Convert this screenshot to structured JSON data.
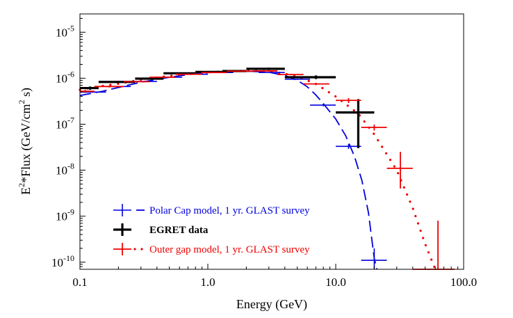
{
  "chart_data": {
    "type": "scatter",
    "xlabel": "Energy (GeV)",
    "ylabel_base": "E",
    "ylabel_sup": "2",
    "ylabel_mid": "*Flux (GeV/cm",
    "ylabel_sup2": "2",
    "ylabel_end": " s)",
    "x_scale": "log",
    "y_scale": "log",
    "xlim": [
      0.1,
      100
    ],
    "ylim": [
      7e-11,
      2.5e-05
    ],
    "x_ticks": [
      {
        "value": 0.1,
        "label": "0.1"
      },
      {
        "value": 1,
        "label": "1.0"
      },
      {
        "value": 10,
        "label": "10.0"
      },
      {
        "value": 100,
        "label": "100.0"
      }
    ],
    "y_ticks": [
      {
        "value": 1e-10,
        "base": "10",
        "exp": "-10"
      },
      {
        "value": 1e-09,
        "base": "10",
        "exp": "-9"
      },
      {
        "value": 1e-08,
        "base": "10",
        "exp": "-8"
      },
      {
        "value": 1e-07,
        "base": "10",
        "exp": "-7"
      },
      {
        "value": 1e-06,
        "base": "10",
        "exp": "-6"
      },
      {
        "value": 1e-05,
        "base": "10",
        "exp": "-5"
      }
    ],
    "legend_position": "bottom-left",
    "series": [
      {
        "name": "Polar Cap model, 1 yr. GLAST survey",
        "color": "#0000dd",
        "model_style": "dashed",
        "model_curve": [
          [
            0.1,
            4.2e-07
          ],
          [
            0.15,
            5.2e-07
          ],
          [
            0.2,
            6.3e-07
          ],
          [
            0.3,
            8.2e-07
          ],
          [
            0.5,
            1.05e-06
          ],
          [
            0.7,
            1.2e-06
          ],
          [
            1.0,
            1.32e-06
          ],
          [
            1.5,
            1.4e-06
          ],
          [
            2.0,
            1.42e-06
          ],
          [
            3.0,
            1.35e-06
          ],
          [
            4.0,
            1.15e-06
          ],
          [
            5.0,
            9e-07
          ],
          [
            6.0,
            6.5e-07
          ],
          [
            7.0,
            4.3e-07
          ],
          [
            8.0,
            2.8e-07
          ],
          [
            10.0,
            1.3e-07
          ],
          [
            12.0,
            5.5e-08
          ],
          [
            14.0,
            2e-08
          ],
          [
            16.0,
            6e-09
          ],
          [
            18.0,
            1.2e-09
          ],
          [
            20.0,
            1.2e-10
          ],
          [
            21.0,
            7e-11
          ]
        ],
        "points": [
          {
            "x": 0.13,
            "y": 5e-07,
            "xlo": 0.1,
            "xhi": 0.16,
            "ylo": 4.85e-07,
            "yhi": 5.15e-07
          },
          {
            "x": 0.2,
            "y": 6.6e-07,
            "xlo": 0.16,
            "xhi": 0.25,
            "ylo": 6.4e-07,
            "yhi": 6.8e-07
          },
          {
            "x": 0.32,
            "y": 8.5e-07,
            "xlo": 0.25,
            "xhi": 0.4,
            "ylo": 8.3e-07,
            "yhi": 8.7e-07
          },
          {
            "x": 0.5,
            "y": 1.05e-06,
            "xlo": 0.4,
            "xhi": 0.63,
            "ylo": 1.03e-06,
            "yhi": 1.07e-06
          },
          {
            "x": 0.8,
            "y": 1.22e-06,
            "xlo": 0.63,
            "xhi": 1.0,
            "ylo": 1.2e-06,
            "yhi": 1.24e-06
          },
          {
            "x": 1.26,
            "y": 1.33e-06,
            "xlo": 1.0,
            "xhi": 1.58,
            "ylo": 1.31e-06,
            "yhi": 1.35e-06
          },
          {
            "x": 2.0,
            "y": 1.4e-06,
            "xlo": 1.58,
            "xhi": 2.5,
            "ylo": 1.38e-06,
            "yhi": 1.42e-06
          },
          {
            "x": 3.2,
            "y": 1.33e-06,
            "xlo": 2.5,
            "xhi": 4.0,
            "ylo": 1.3e-06,
            "yhi": 1.36e-06
          },
          {
            "x": 5.0,
            "y": 9.5e-07,
            "xlo": 4.0,
            "xhi": 6.3,
            "ylo": 9.2e-07,
            "yhi": 9.8e-07
          },
          {
            "x": 8.0,
            "y": 2.6e-07,
            "xlo": 6.3,
            "xhi": 10.0,
            "ylo": 2.45e-07,
            "yhi": 2.75e-07
          },
          {
            "x": 12.6,
            "y": 3.3e-08,
            "xlo": 10.0,
            "xhi": 15.8,
            "ylo": 2.9e-08,
            "yhi": 3.7e-08
          },
          {
            "x": 20.0,
            "y": 1.1e-10,
            "xlo": 15.8,
            "xhi": 25.1,
            "ylo": 7e-11,
            "yhi": 2e-10
          }
        ]
      },
      {
        "name": "EGRET data",
        "color": "#000000",
        "points": [
          {
            "x": 0.12,
            "y": 6.1e-07,
            "xlo": 0.1,
            "xhi": 0.14,
            "ylo": 5.6e-07,
            "yhi": 6.6e-07
          },
          {
            "x": 0.2,
            "y": 8.3e-07,
            "xlo": 0.14,
            "xhi": 0.27,
            "ylo": 7.9e-07,
            "yhi": 8.8e-07
          },
          {
            "x": 0.35,
            "y": 9.8e-07,
            "xlo": 0.27,
            "xhi": 0.45,
            "ylo": 9.4e-07,
            "yhi": 1.02e-06
          },
          {
            "x": 0.6,
            "y": 1.28e-06,
            "xlo": 0.45,
            "xhi": 0.8,
            "ylo": 1.24e-06,
            "yhi": 1.32e-06
          },
          {
            "x": 1.0,
            "y": 1.37e-06,
            "xlo": 0.8,
            "xhi": 1.3,
            "ylo": 1.33e-06,
            "yhi": 1.41e-06
          },
          {
            "x": 1.6,
            "y": 1.43e-06,
            "xlo": 1.3,
            "xhi": 2.0,
            "ylo": 1.39e-06,
            "yhi": 1.47e-06
          },
          {
            "x": 3.0,
            "y": 1.6e-06,
            "xlo": 2.0,
            "xhi": 4.0,
            "ylo": 1.5e-06,
            "yhi": 1.7e-06
          },
          {
            "x": 7.0,
            "y": 1.05e-06,
            "xlo": 4.0,
            "xhi": 10.0,
            "ylo": 9.6e-07,
            "yhi": 1.15e-06
          },
          {
            "x": 15.0,
            "y": 1.8e-07,
            "xlo": 10.0,
            "xhi": 20.0,
            "ylo": 3e-08,
            "yhi": 3.5e-07
          }
        ]
      },
      {
        "name": "Outer gap model, 1 yr. GLAST survey",
        "color": "#ee0000",
        "model_style": "dotted",
        "model_curve": [
          [
            0.1,
            5.6e-07
          ],
          [
            0.15,
            6.8e-07
          ],
          [
            0.2,
            7.6e-07
          ],
          [
            0.3,
            9.3e-07
          ],
          [
            0.5,
            1.12e-06
          ],
          [
            0.7,
            1.25e-06
          ],
          [
            1.0,
            1.35e-06
          ],
          [
            1.5,
            1.42e-06
          ],
          [
            2.0,
            1.45e-06
          ],
          [
            3.0,
            1.42e-06
          ],
          [
            4.0,
            1.25e-06
          ],
          [
            5.0,
            1.1e-06
          ],
          [
            7.0,
            7.5e-07
          ],
          [
            10.0,
            4e-07
          ],
          [
            15.0,
            1.7e-07
          ],
          [
            20.0,
            6e-08
          ],
          [
            30.0,
            1e-08
          ],
          [
            40.0,
            1.5e-09
          ],
          [
            50.0,
            2.5e-10
          ],
          [
            60.0,
            7e-11
          ]
        ],
        "points": [
          {
            "x": 0.11,
            "y": 5.2e-07,
            "xlo": 0.1,
            "xhi": 0.13,
            "ylo": 4.8e-07,
            "yhi": 5.6e-07
          },
          {
            "x": 0.17,
            "y": 6.6e-07,
            "xlo": 0.13,
            "xhi": 0.22,
            "ylo": 6.3e-07,
            "yhi": 6.9e-07
          },
          {
            "x": 0.28,
            "y": 8.4e-07,
            "xlo": 0.22,
            "xhi": 0.35,
            "ylo": 8.1e-07,
            "yhi": 8.7e-07
          },
          {
            "x": 0.45,
            "y": 1.05e-06,
            "xlo": 0.35,
            "xhi": 0.56,
            "ylo": 1.02e-06,
            "yhi": 1.08e-06
          },
          {
            "x": 0.7,
            "y": 1.22e-06,
            "xlo": 0.56,
            "xhi": 0.89,
            "ylo": 1.19e-06,
            "yhi": 1.25e-06
          },
          {
            "x": 1.1,
            "y": 1.33e-06,
            "xlo": 0.89,
            "xhi": 1.41,
            "ylo": 1.3e-06,
            "yhi": 1.36e-06
          },
          {
            "x": 1.8,
            "y": 1.42e-06,
            "xlo": 1.41,
            "xhi": 2.24,
            "ylo": 1.39e-06,
            "yhi": 1.45e-06
          },
          {
            "x": 2.8,
            "y": 1.44e-06,
            "xlo": 2.24,
            "xhi": 3.5,
            "ylo": 1.41e-06,
            "yhi": 1.47e-06
          },
          {
            "x": 4.5,
            "y": 1.2e-06,
            "xlo": 3.5,
            "xhi": 5.6,
            "ylo": 1.16e-06,
            "yhi": 1.24e-06
          },
          {
            "x": 7.0,
            "y": 7.5e-07,
            "xlo": 5.6,
            "xhi": 8.9,
            "ylo": 7.1e-07,
            "yhi": 7.9e-07
          },
          {
            "x": 12.6,
            "y": 3.3e-07,
            "xlo": 10.0,
            "xhi": 15.8,
            "ylo": 2.9e-07,
            "yhi": 3.7e-07
          },
          {
            "x": 20.0,
            "y": 8.5e-08,
            "xlo": 15.8,
            "xhi": 25.1,
            "ylo": 7.3e-08,
            "yhi": 9.8e-08
          },
          {
            "x": 32.0,
            "y": 1.1e-08,
            "xlo": 25.1,
            "xhi": 40.0,
            "ylo": 4e-09,
            "yhi": 2.5e-08
          },
          {
            "x": 63.0,
            "y": 7e-11,
            "xlo": 40.0,
            "xhi": 85.0,
            "ylo": 7e-11,
            "yhi": 8e-10
          }
        ]
      }
    ]
  }
}
